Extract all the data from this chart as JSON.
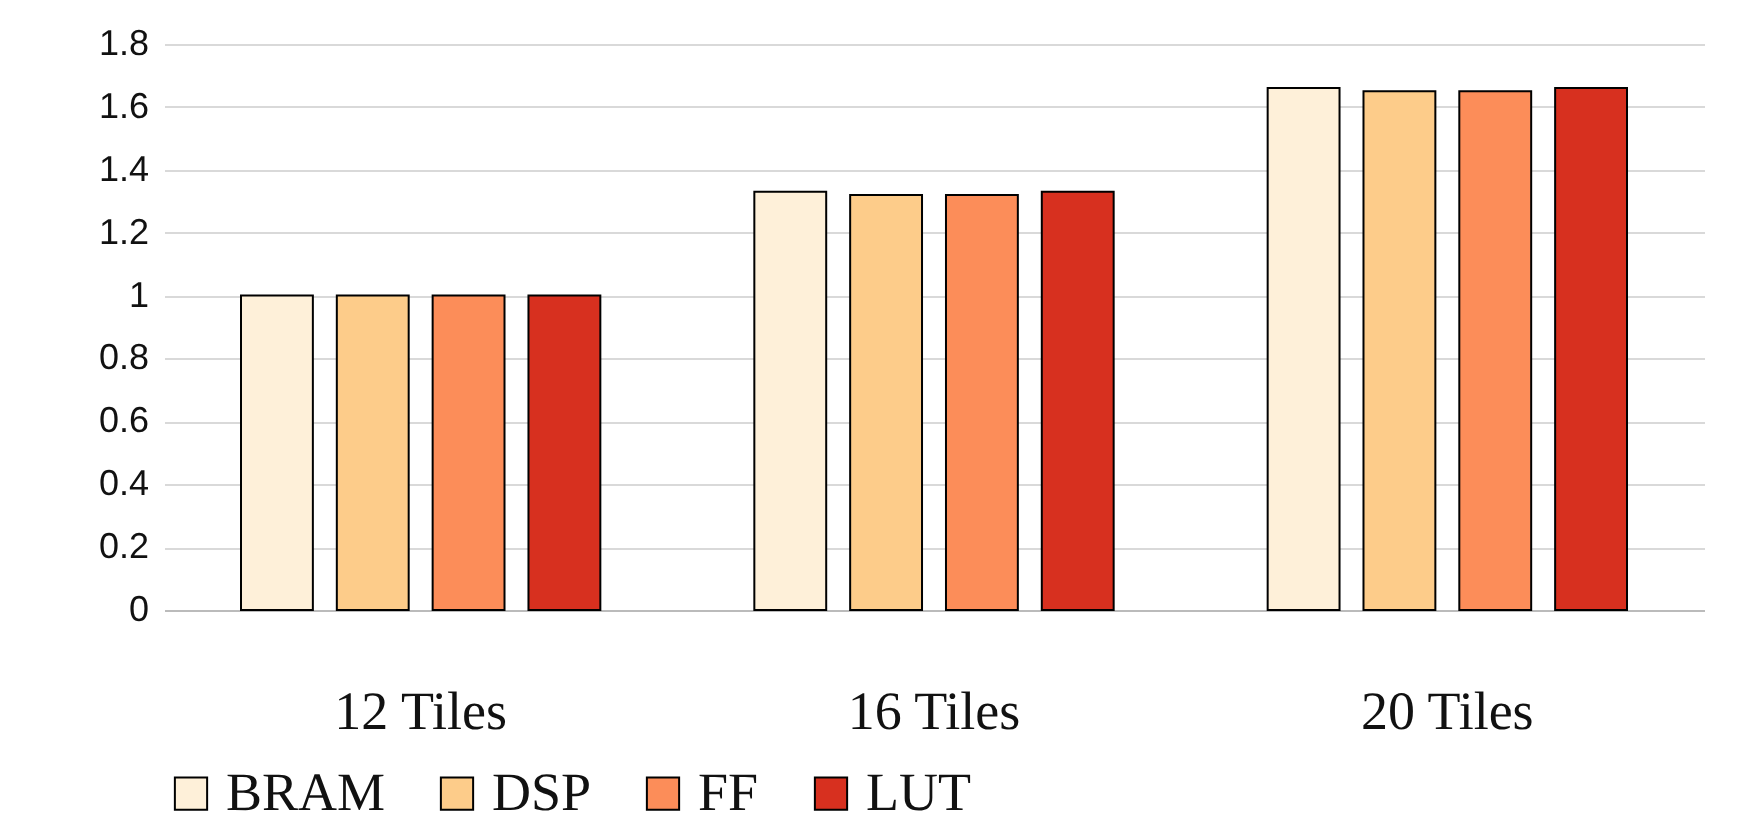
{
  "chart_data": {
    "type": "bar",
    "categories": [
      "12 Tiles",
      "16 Tiles",
      "20 Tiles"
    ],
    "series": [
      {
        "name": "BRAM",
        "color": "#fef0d9",
        "values": [
          1.0,
          1.33,
          1.66
        ]
      },
      {
        "name": "DSP",
        "color": "#fdcc8a",
        "values": [
          1.0,
          1.32,
          1.65
        ]
      },
      {
        "name": "FF",
        "color": "#fc8d59",
        "values": [
          1.0,
          1.32,
          1.65
        ]
      },
      {
        "name": "LUT",
        "color": "#d7301f",
        "values": [
          1.0,
          1.33,
          1.66
        ]
      }
    ],
    "ylim": [
      0,
      1.8
    ],
    "yticks": [
      0,
      0.2,
      0.4,
      0.6,
      0.8,
      1,
      1.2,
      1.4,
      1.6,
      1.8
    ],
    "grid": "y",
    "legend": "bottom"
  }
}
